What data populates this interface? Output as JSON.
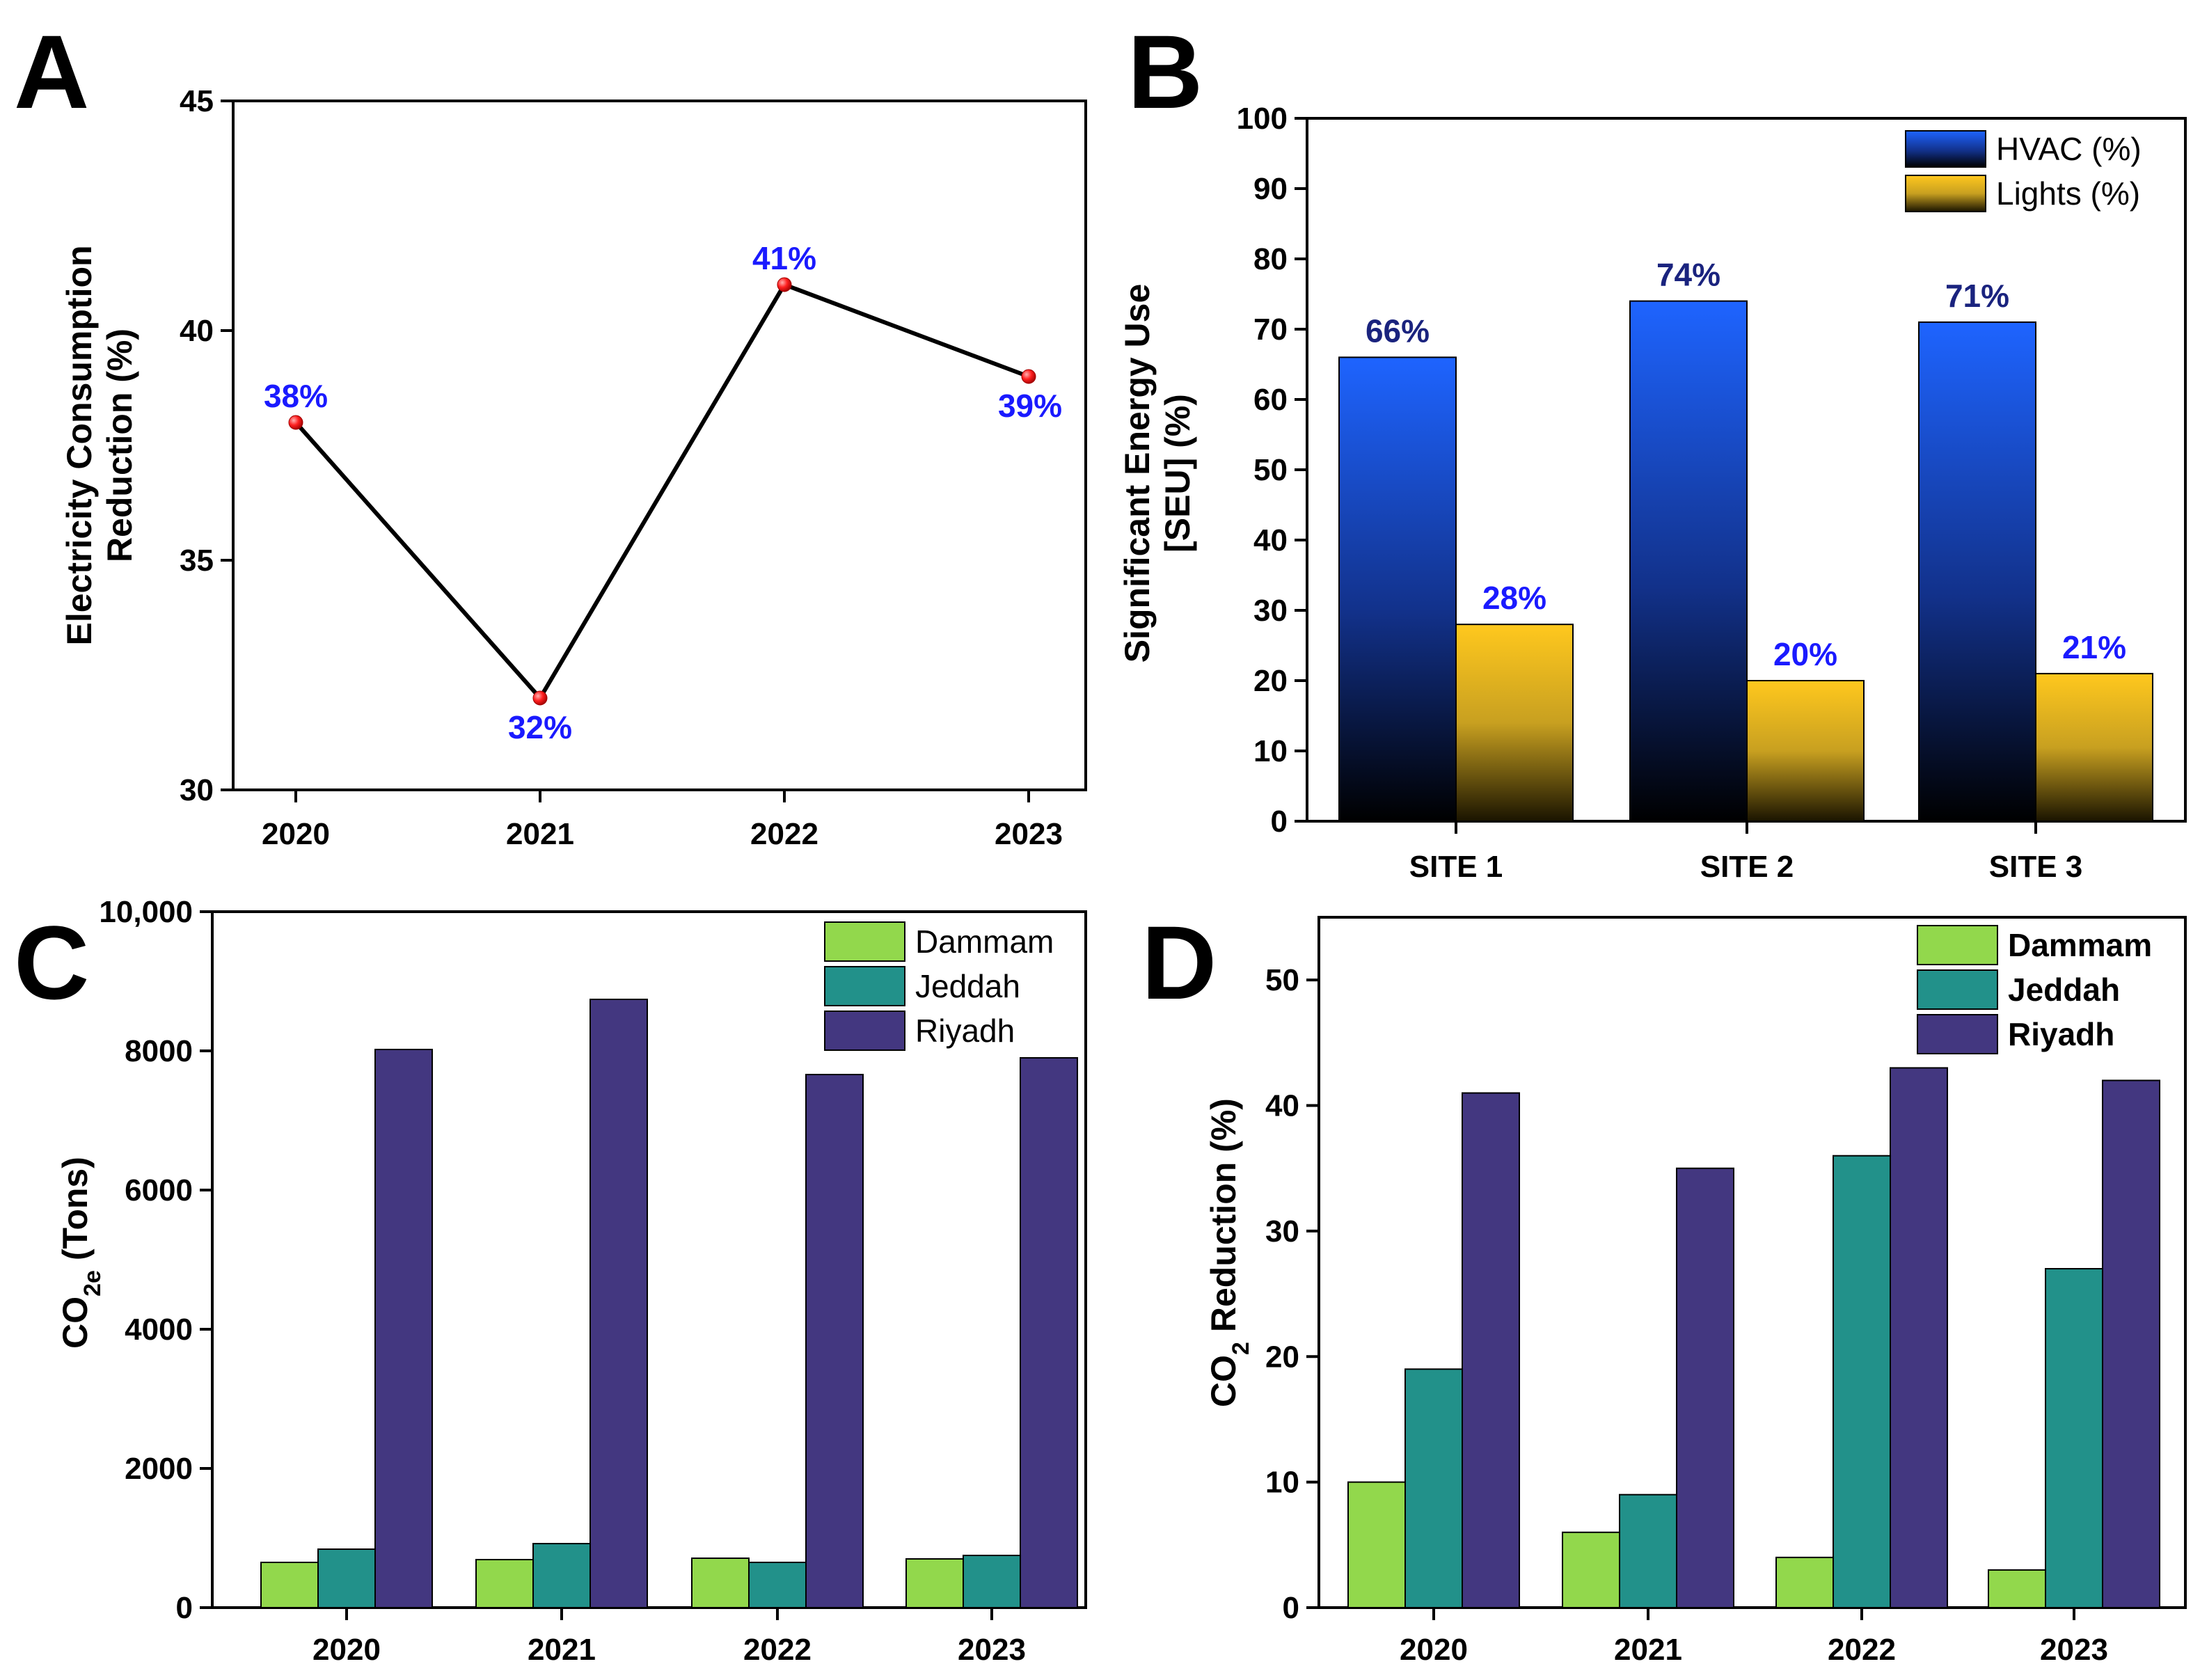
{
  "colors": {
    "line": "#000000",
    "marker": "#ff2020",
    "label_blue": "#1a1aff",
    "label_navy": "#1a237e",
    "hvac_top": "#1e64ff",
    "hvac_bottom": "#000000",
    "lights_top": "#ffc81e",
    "lights_bottom": "#000000",
    "dammam": "#92d84c",
    "jeddah": "#22918a",
    "riyadh": "#433780"
  },
  "chart_data": [
    {
      "panel": "A",
      "type": "line",
      "title": "",
      "xlabel": "",
      "ylabel_lines": [
        "Electricity Consumption",
        "Reduction (%)"
      ],
      "x": [
        "2020",
        "2021",
        "2022",
        "2023"
      ],
      "values": [
        38,
        32,
        41,
        39
      ],
      "data_labels": [
        "38%",
        "32%",
        "41%",
        "39%"
      ],
      "ylim": [
        30,
        45
      ],
      "yticks": [
        "30",
        "35",
        "40",
        "45"
      ]
    },
    {
      "panel": "B",
      "type": "bar",
      "title": "",
      "xlabel": "",
      "ylabel_lines": [
        "Significant Energy Use",
        "[SEU] (%)"
      ],
      "categories": [
        "SITE 1",
        "SITE 2",
        "SITE 3"
      ],
      "series": [
        {
          "name": "HVAC (%)",
          "values": [
            66,
            74,
            71
          ],
          "labels": [
            "66%",
            "74%",
            "71%"
          ]
        },
        {
          "name": "Lights (%)",
          "values": [
            28,
            20,
            21
          ],
          "labels": [
            "28%",
            "20%",
            "21%"
          ]
        }
      ],
      "ylim": [
        0,
        100
      ],
      "yticks": [
        "0",
        "10",
        "20",
        "30",
        "40",
        "50",
        "60",
        "70",
        "80",
        "90",
        "100"
      ],
      "legend": "top-right"
    },
    {
      "panel": "C",
      "type": "bar",
      "title": "",
      "xlabel": "",
      "ylabel": {
        "main": "CO",
        "sub": "2e",
        "rest": " (Tons)"
      },
      "categories": [
        "2020",
        "2021",
        "2022",
        "2023"
      ],
      "series": [
        {
          "name": "Dammam",
          "values": [
            650,
            690,
            710,
            700
          ]
        },
        {
          "name": "Jeddah",
          "values": [
            840,
            920,
            650,
            750
          ]
        },
        {
          "name": "Riyadh",
          "values": [
            8020,
            8740,
            7660,
            7900
          ]
        }
      ],
      "ylim": [
        0,
        10000
      ],
      "yticks": [
        "0",
        "2000",
        "4000",
        "6000",
        "8000",
        "10,000"
      ],
      "legend": "top-right"
    },
    {
      "panel": "D",
      "type": "bar",
      "title": "",
      "xlabel": "",
      "ylabel": {
        "main": "CO",
        "sub": "2",
        "rest": " Reduction (%)"
      },
      "categories": [
        "2020",
        "2021",
        "2022",
        "2023"
      ],
      "series": [
        {
          "name": "Dammam",
          "values": [
            10,
            6,
            4,
            3
          ]
        },
        {
          "name": "Jeddah",
          "values": [
            19,
            9,
            36,
            27
          ]
        },
        {
          "name": "Riyadh",
          "values": [
            41,
            35,
            43,
            42
          ]
        }
      ],
      "ylim": [
        0,
        55
      ],
      "yticks": [
        "0",
        "10",
        "20",
        "30",
        "40",
        "50"
      ],
      "legend": "top-right"
    }
  ]
}
